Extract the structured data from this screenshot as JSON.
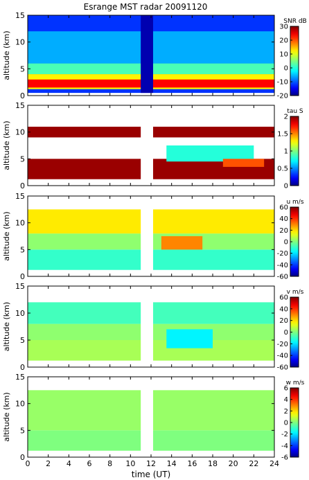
{
  "title": "Esrange MST radar 20091120",
  "x_label": "time (UT)",
  "chart_data": [
    {
      "type": "heatmap",
      "ylabel": "altitude (km)",
      "xlim": [
        0,
        24
      ],
      "ylim": [
        0,
        15
      ],
      "x_ticks": [
        0,
        2,
        4,
        6,
        8,
        10,
        12,
        14,
        16,
        18,
        20,
        22,
        24
      ],
      "y_ticks": [
        0,
        5,
        10,
        15
      ],
      "colorbar": {
        "label": "SNR dB",
        "range": [
          -20,
          30
        ],
        "ticks": [
          -20,
          -10,
          0,
          10,
          20,
          30
        ]
      },
      "data_gaps": [],
      "layers": [
        {
          "t_start": 0,
          "t_end": 24,
          "alt_bottom": 0.5,
          "alt_top": 15,
          "value": -12
        },
        {
          "t_start": 0,
          "t_end": 24,
          "alt_bottom": 6,
          "alt_top": 12,
          "value": -6
        },
        {
          "t_start": 0,
          "t_end": 24,
          "alt_bottom": 4,
          "alt_top": 6,
          "value": 2
        },
        {
          "t_start": 0,
          "t_end": 24,
          "alt_bottom": 1.2,
          "alt_top": 4,
          "value": 12
        },
        {
          "t_start": 0,
          "t_end": 24,
          "alt_bottom": 1.5,
          "alt_top": 3,
          "value": 24
        }
      ],
      "blocks": [
        {
          "t_start": 11.0,
          "t_end": 12.2,
          "alt_bottom": 0.5,
          "alt_top": 15,
          "value": -18
        }
      ]
    },
    {
      "type": "heatmap",
      "ylabel": "altitude (km)",
      "xlim": [
        0,
        24
      ],
      "ylim": [
        0,
        15
      ],
      "x_ticks": [
        0,
        2,
        4,
        6,
        8,
        10,
        12,
        14,
        16,
        18,
        20,
        22,
        24
      ],
      "y_ticks": [
        0,
        5,
        10,
        15
      ],
      "colorbar": {
        "label": "tau S",
        "range": [
          0,
          2
        ],
        "ticks": [
          0,
          0.5,
          1,
          1.5,
          2
        ]
      },
      "data_gaps": [
        [
          11.0,
          12.2
        ]
      ],
      "layers": [
        {
          "t_start": 0,
          "t_end": 24,
          "alt_bottom": 1.2,
          "alt_top": 5.0,
          "value": 1.95
        },
        {
          "t_start": 0,
          "t_end": 24,
          "alt_bottom": 9.0,
          "alt_top": 11.0,
          "value": 1.95
        },
        {
          "t_start": 13.5,
          "t_end": 22,
          "alt_bottom": 4.5,
          "alt_top": 7.5,
          "value": 0.8
        },
        {
          "t_start": 19,
          "t_end": 23,
          "alt_bottom": 3.5,
          "alt_top": 5.0,
          "value": 1.6
        }
      ],
      "blocks": []
    },
    {
      "type": "heatmap",
      "ylabel": "altitude (km)",
      "xlim": [
        0,
        24
      ],
      "ylim": [
        0,
        15
      ],
      "x_ticks": [
        0,
        2,
        4,
        6,
        8,
        10,
        12,
        14,
        16,
        18,
        20,
        22,
        24
      ],
      "y_ticks": [
        0,
        5,
        10,
        15
      ],
      "colorbar": {
        "label": "u m/s",
        "range": [
          -60,
          60
        ],
        "ticks": [
          -60,
          -40,
          -20,
          0,
          20,
          40,
          60
        ]
      },
      "data_gaps": [
        [
          11.0,
          12.2
        ]
      ],
      "layers": [
        {
          "t_start": 0,
          "t_end": 24,
          "alt_bottom": 1.2,
          "alt_top": 5.0,
          "value": -10
        },
        {
          "t_start": 0,
          "t_end": 24,
          "alt_bottom": 5.0,
          "alt_top": 8.0,
          "value": 2
        },
        {
          "t_start": 0,
          "t_end": 24,
          "alt_bottom": 8.0,
          "alt_top": 12.5,
          "value": 18
        },
        {
          "t_start": 13,
          "t_end": 17,
          "alt_bottom": 5.0,
          "alt_top": 7.5,
          "value": 30
        }
      ],
      "blocks": []
    },
    {
      "type": "heatmap",
      "ylabel": "altitude (km)",
      "xlim": [
        0,
        24
      ],
      "ylim": [
        0,
        15
      ],
      "x_ticks": [
        0,
        2,
        4,
        6,
        8,
        10,
        12,
        14,
        16,
        18,
        20,
        22,
        24
      ],
      "y_ticks": [
        0,
        5,
        10,
        15
      ],
      "colorbar": {
        "label": "v m/s",
        "range": [
          -60,
          60
        ],
        "ticks": [
          -60,
          -40,
          -20,
          0,
          20,
          40,
          60
        ]
      },
      "data_gaps": [
        [
          11.0,
          12.2
        ]
      ],
      "layers": [
        {
          "t_start": 0,
          "t_end": 24,
          "alt_bottom": 1.2,
          "alt_top": 5.0,
          "value": 5
        },
        {
          "t_start": 0,
          "t_end": 24,
          "alt_bottom": 5.0,
          "alt_top": 8.0,
          "value": 2
        },
        {
          "t_start": 0,
          "t_end": 24,
          "alt_bottom": 8.0,
          "alt_top": 12.0,
          "value": -8
        },
        {
          "t_start": 13.5,
          "t_end": 18,
          "alt_bottom": 3.5,
          "alt_top": 7.0,
          "value": -18
        }
      ],
      "blocks": []
    },
    {
      "type": "heatmap",
      "ylabel": "altitude (km)",
      "xlim": [
        0,
        24
      ],
      "ylim": [
        0,
        15
      ],
      "x_ticks": [
        0,
        2,
        4,
        6,
        8,
        10,
        12,
        14,
        16,
        18,
        20,
        22,
        24
      ],
      "y_ticks": [
        0,
        5,
        10,
        15
      ],
      "colorbar": {
        "label": "w m/s",
        "range": [
          -6,
          6
        ],
        "ticks": [
          -6,
          -4,
          -2,
          0,
          2,
          4,
          6
        ]
      },
      "data_gaps": [
        [
          11.0,
          12.2
        ]
      ],
      "layers": [
        {
          "t_start": 0,
          "t_end": 24,
          "alt_bottom": 1.2,
          "alt_top": 5.0,
          "value": 0
        },
        {
          "t_start": 0,
          "t_end": 24,
          "alt_bottom": 5.0,
          "alt_top": 12.5,
          "value": 0.3
        }
      ],
      "blocks": []
    }
  ]
}
